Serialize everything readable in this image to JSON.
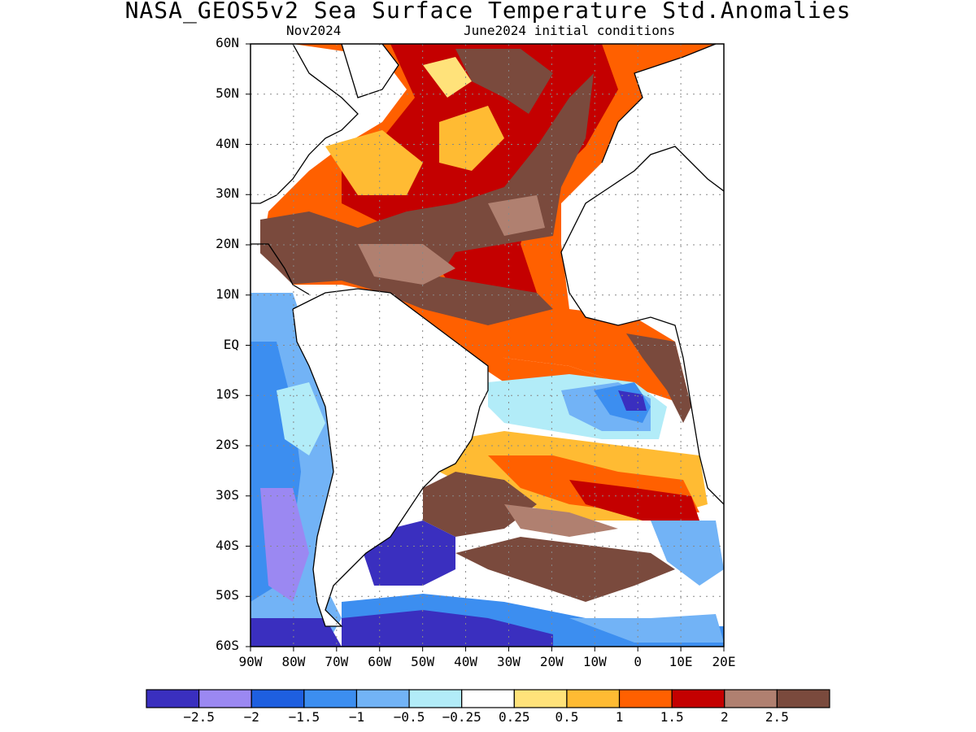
{
  "title": "NASA_GEOS5v2 Sea Surface Temperature Std.Anomalies",
  "subtitle_left": "Nov2024",
  "subtitle_right": "June2024 initial conditions",
  "lat_labels": [
    "60N",
    "50N",
    "40N",
    "30N",
    "20N",
    "10N",
    "EQ",
    "10S",
    "20S",
    "30S",
    "40S",
    "50S",
    "60S"
  ],
  "lon_labels": [
    "90W",
    "80W",
    "70W",
    "60W",
    "50W",
    "40W",
    "30W",
    "20W",
    "10W",
    "0",
    "10E",
    "20E"
  ],
  "colorbar": {
    "colors": [
      "#3a2fbf",
      "#9b88f2",
      "#1e5fe0",
      "#3c8ef0",
      "#72b3f6",
      "#b2ecf8",
      "#ffffff",
      "#ffe27a",
      "#ffbb33",
      "#ff6000",
      "#c40000",
      "#b08070",
      "#7a4a3d"
    ],
    "tick_labels": [
      "−2.5",
      "−2",
      "−1.5",
      "−1",
      "−0.5",
      "−0.25",
      "0.25",
      "0.5",
      "1",
      "1.5",
      "2",
      "2.5"
    ]
  }
}
